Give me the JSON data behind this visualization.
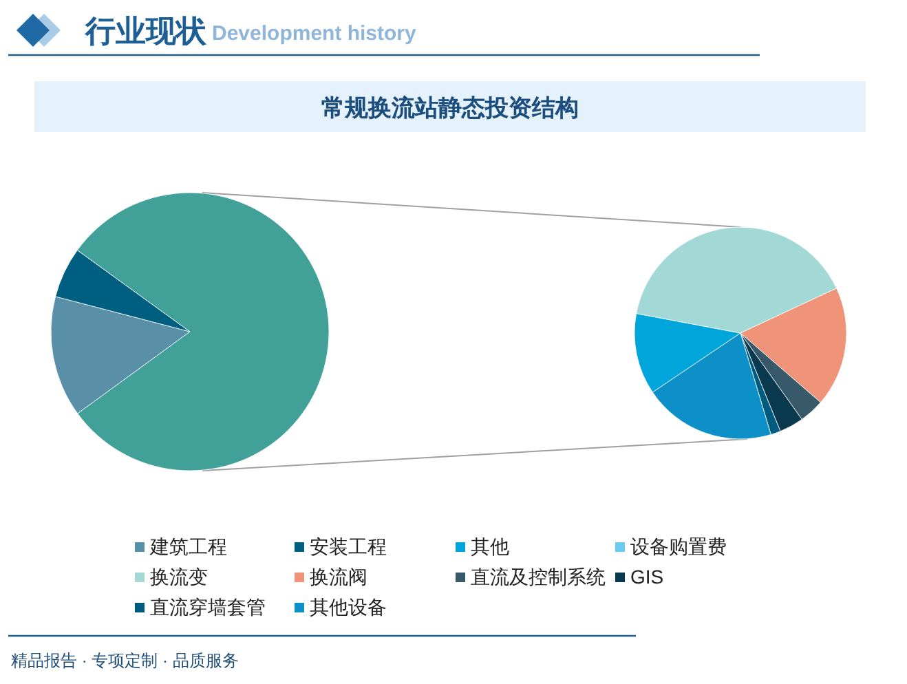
{
  "chart_data": [
    {
      "type": "pie",
      "title": "常规换流站静态投资结构",
      "annotations": [
        "行业现状",
        "Development history",
        "精品报告 · 专项定制 · 品质服务"
      ],
      "categories": [
        "建筑工程",
        "安装工程",
        null
      ],
      "values": [
        14.1,
        5.9,
        80.0
      ],
      "colors": [
        "#5a8fa8",
        "#005e80",
        "#41a098"
      ],
      "legend": "bottom"
    },
    {
      "type": "pie",
      "categories": [
        "其他",
        "设备购置费",
        "换流变",
        "换流阀",
        "直流及控制系统",
        "GIS",
        "直流穿墙套管",
        "其他设备"
      ],
      "values": [
        12.4,
        0,
        40.1,
        18.3,
        3.8,
        3.7,
        1.5,
        20.2
      ],
      "colors": [
        "#00a5dc",
        "#6ccbf0",
        "#a2d8d6",
        "#ef9478",
        "#37596a",
        "#0a3a50",
        "#005a7e",
        "#0d90c8"
      ],
      "legend": "bottom"
    }
  ]
}
